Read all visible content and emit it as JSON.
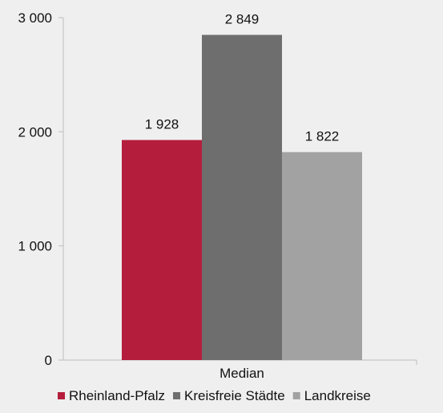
{
  "chart_data": {
    "type": "bar",
    "categories": [
      "Median"
    ],
    "series": [
      {
        "name": "Rheinland-Pfalz",
        "values": [
          1928
        ],
        "color": "#b41e3c",
        "value_label": "1 928"
      },
      {
        "name": "Kreisfreie Städte",
        "values": [
          2849
        ],
        "color": "#6e6e6e",
        "value_label": "2 849"
      },
      {
        "name": "Landkreise",
        "values": [
          1822
        ],
        "color": "#a2a2a2",
        "value_label": "1 822"
      }
    ],
    "ylim": [
      0,
      3000
    ],
    "yticks": [
      {
        "value": 0,
        "label": "0"
      },
      {
        "value": 1000,
        "label": "1 000"
      },
      {
        "value": 2000,
        "label": "2 000"
      },
      {
        "value": 3000,
        "label": "3 000"
      }
    ],
    "grid": false,
    "legend_position": "bottom",
    "axis_color": "#bdbdbd"
  }
}
